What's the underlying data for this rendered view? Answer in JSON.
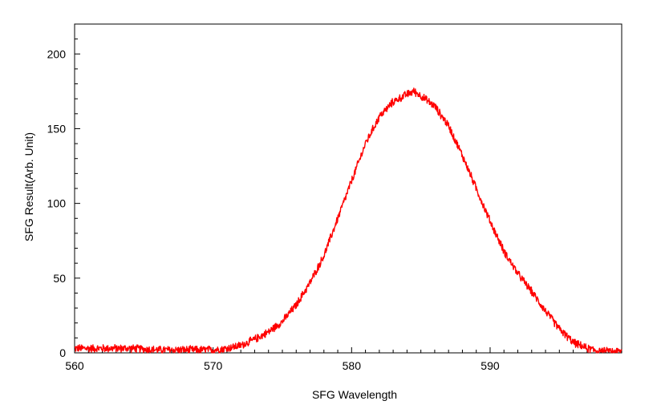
{
  "chart_data": {
    "type": "line",
    "title": "",
    "xlabel": "SFG Wavelength",
    "ylabel": "SFG Result(Arb. Unit)",
    "xlim": [
      560,
      599.5
    ],
    "ylim": [
      0,
      220
    ],
    "x_ticks": [
      560,
      570,
      580,
      590
    ],
    "y_ticks": [
      0,
      50,
      100,
      150,
      200
    ],
    "grid": false,
    "legend": "none",
    "series": [
      {
        "color": "#ff0000",
        "x": [
          560,
          562,
          564,
          566,
          568,
          570,
          571,
          572,
          573,
          574,
          575,
          576,
          577,
          578,
          579,
          580,
          581,
          582,
          583,
          584,
          584.5,
          585,
          586,
          587,
          588,
          589,
          590,
          591,
          592,
          593,
          594,
          595,
          596,
          597,
          598,
          599.5
        ],
        "values": [
          3,
          3,
          3,
          2,
          2,
          2,
          3,
          5,
          9,
          14,
          21,
          32,
          47,
          65,
          90,
          115,
          140,
          158,
          168,
          173,
          175,
          172,
          165,
          152,
          132,
          110,
          88,
          68,
          53,
          41,
          28,
          16,
          7,
          3,
          1,
          1
        ]
      }
    ],
    "noise_amplitude": 3
  }
}
